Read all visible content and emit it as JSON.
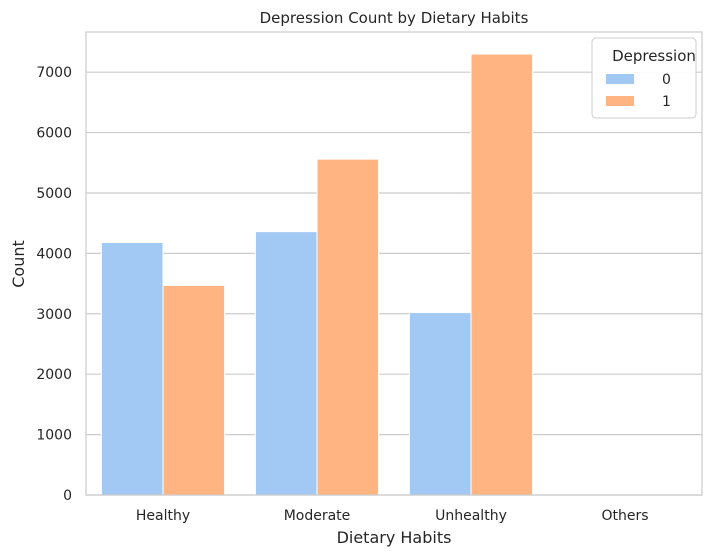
{
  "chart_data": {
    "type": "bar",
    "title": "Depression Count by Dietary Habits",
    "xlabel": "Dietary Habits",
    "ylabel": "Count",
    "categories": [
      "Healthy",
      "Moderate",
      "Unhealthy",
      "Others"
    ],
    "series": [
      {
        "name": "0",
        "values": [
          4180,
          4360,
          3020,
          0
        ],
        "color": "#a1c9f4"
      },
      {
        "name": "1",
        "values": [
          3470,
          5560,
          7300,
          0
        ],
        "color": "#ffb482"
      }
    ],
    "legend_title": "Depression",
    "legend_position": "top-right",
    "ylim": [
      0,
      7665
    ],
    "yticks": [
      0,
      1000,
      2000,
      3000,
      4000,
      5000,
      6000,
      7000
    ],
    "grid": "y",
    "colors": {
      "grid": "#cccccc",
      "spine": "#cccccc",
      "text": "#262626"
    }
  }
}
